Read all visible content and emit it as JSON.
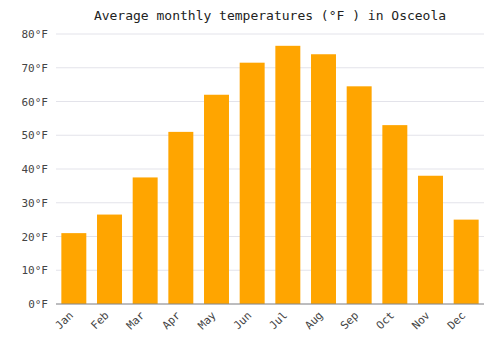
{
  "chart_data": {
    "type": "bar",
    "title": "Average monthly temperatures (°F ) in Osceola",
    "categories": [
      "Jan",
      "Feb",
      "Mar",
      "Apr",
      "May",
      "Jun",
      "Jul",
      "Aug",
      "Sep",
      "Oct",
      "Nov",
      "Dec"
    ],
    "values": [
      21,
      26.5,
      37.5,
      51,
      62,
      71.5,
      76.5,
      74,
      64.5,
      53,
      38,
      25
    ],
    "color": "#FFA500",
    "ylim": [
      0,
      80
    ],
    "yticks": [
      {
        "value": 0,
        "label": "0°F"
      },
      {
        "value": 10,
        "label": "10°F"
      },
      {
        "value": 20,
        "label": "20°F"
      },
      {
        "value": 30,
        "label": "30°F"
      },
      {
        "value": 40,
        "label": "40°F"
      },
      {
        "value": 50,
        "label": "50°F"
      },
      {
        "value": 60,
        "label": "60°F"
      },
      {
        "value": 70,
        "label": "70°F"
      },
      {
        "value": 80,
        "label": "80°F"
      }
    ],
    "grid": true
  }
}
